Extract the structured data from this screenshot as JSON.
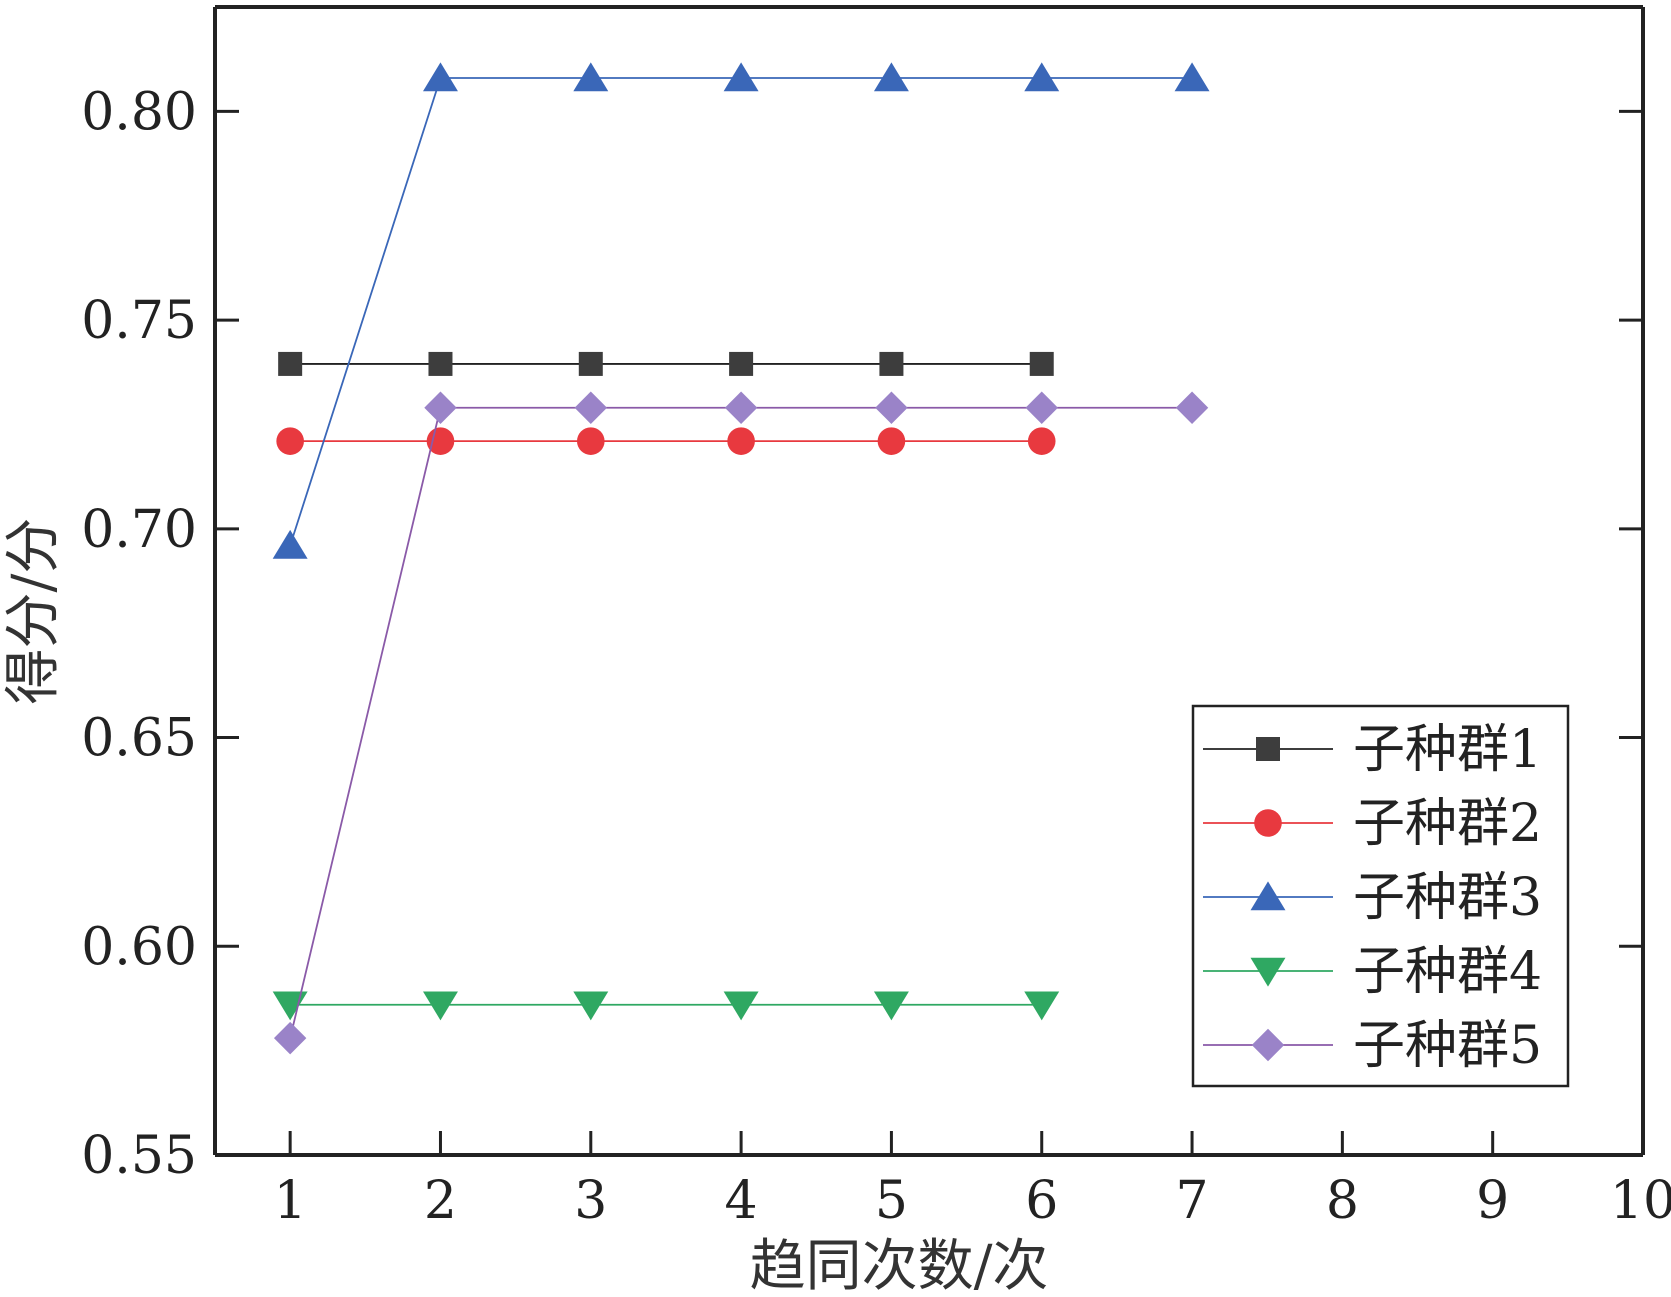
{
  "chart_data": {
    "type": "line",
    "xlabel": "趋同次数/次",
    "ylabel": "得分/分",
    "xlim": [
      0.5,
      10
    ],
    "ylim": [
      0.55,
      0.825
    ],
    "x_ticks": [
      1,
      2,
      3,
      4,
      5,
      6,
      7,
      8,
      9,
      10
    ],
    "x_tick_labels": [
      "1",
      "2",
      "3",
      "4",
      "5",
      "6",
      "7",
      "8",
      "9",
      "10"
    ],
    "y_ticks": [
      0.55,
      0.6,
      0.65,
      0.7,
      0.75,
      0.8
    ],
    "y_tick_labels": [
      "0.55",
      "0.60",
      "0.65",
      "0.70",
      "0.75",
      "0.80"
    ],
    "grid": false,
    "legend_position": "lower-right",
    "series": [
      {
        "name": "子种群1",
        "marker": "square",
        "line_color": "#222222",
        "marker_color": "#3d3d3d",
        "x": [
          1,
          2,
          3,
          4,
          5,
          6
        ],
        "values": [
          0.7395,
          0.7395,
          0.7395,
          0.7395,
          0.7395,
          0.7395
        ]
      },
      {
        "name": "子种群2",
        "marker": "circle",
        "line_color": "#e8393f",
        "marker_color": "#e8393f",
        "x": [
          1,
          2,
          3,
          4,
          5,
          6
        ],
        "values": [
          0.721,
          0.721,
          0.721,
          0.721,
          0.721,
          0.721
        ]
      },
      {
        "name": "子种群3",
        "marker": "triangle-up",
        "line_color": "#3a67b8",
        "marker_color": "#3a67b8",
        "x": [
          1,
          2,
          3,
          4,
          5,
          6,
          7
        ],
        "values": [
          0.696,
          0.808,
          0.808,
          0.808,
          0.808,
          0.808,
          0.808
        ]
      },
      {
        "name": "子种群4",
        "marker": "triangle-down",
        "line_color": "#2fa862",
        "marker_color": "#2fa862",
        "x": [
          1,
          2,
          3,
          4,
          5,
          6
        ],
        "values": [
          0.586,
          0.586,
          0.586,
          0.586,
          0.586,
          0.586
        ]
      },
      {
        "name": "子种群5",
        "marker": "diamond",
        "line_color": "#8a5aa8",
        "marker_color": "#9a83c8",
        "x": [
          1,
          2,
          3,
          4,
          5,
          6,
          7
        ],
        "values": [
          0.578,
          0.729,
          0.729,
          0.729,
          0.729,
          0.729,
          0.729
        ]
      }
    ]
  }
}
